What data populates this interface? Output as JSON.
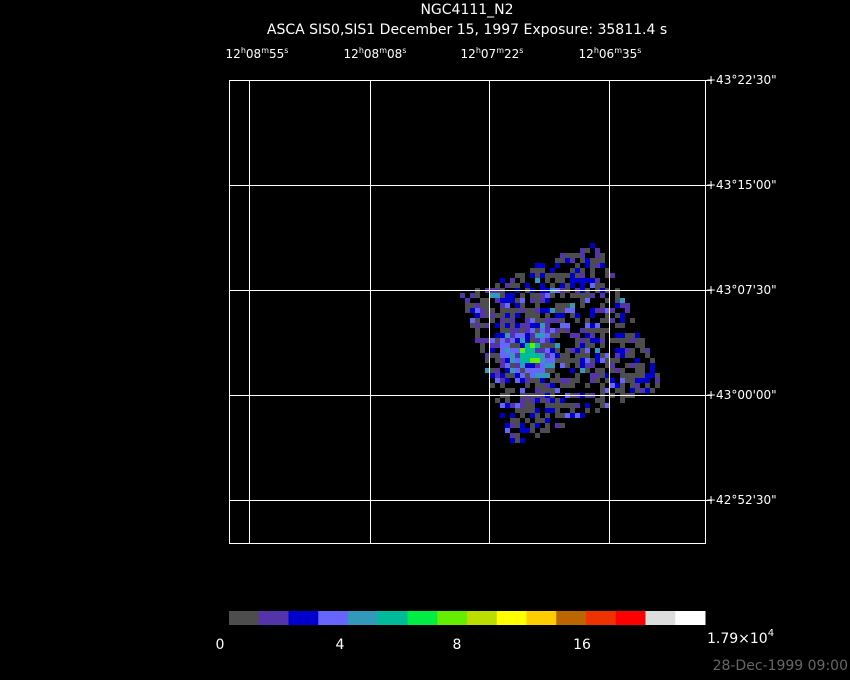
{
  "title": "NGC4111_N2",
  "subtitle": "ASCA SIS0,SIS1 December 15, 1997 Exposure: 35811.4 s",
  "ra_labels": [
    [
      [
        "12",
        "h"
      ],
      [
        "08",
        "m"
      ],
      [
        "55",
        "s"
      ]
    ],
    [
      [
        "12",
        "h"
      ],
      [
        "08",
        "m"
      ],
      [
        "08",
        "s"
      ]
    ],
    [
      [
        "12",
        "h"
      ],
      [
        "07",
        "m"
      ],
      [
        "22",
        "s"
      ]
    ],
    [
      [
        "12",
        "h"
      ],
      [
        "06",
        "m"
      ],
      [
        "35",
        "s"
      ]
    ]
  ],
  "dec_labels": [
    "+43°22'30\"",
    "+43°15'00\"",
    "+43°07'30\"",
    "+43°00'00\"",
    "+42°52'30\""
  ],
  "colorbar_labels": [
    "0",
    "4",
    "8",
    "16"
  ],
  "colorbar_max": {
    "mantissa": "1.79×10",
    "exponent": "4"
  },
  "timestamp": "28-Dec-1999 09:00"
}
